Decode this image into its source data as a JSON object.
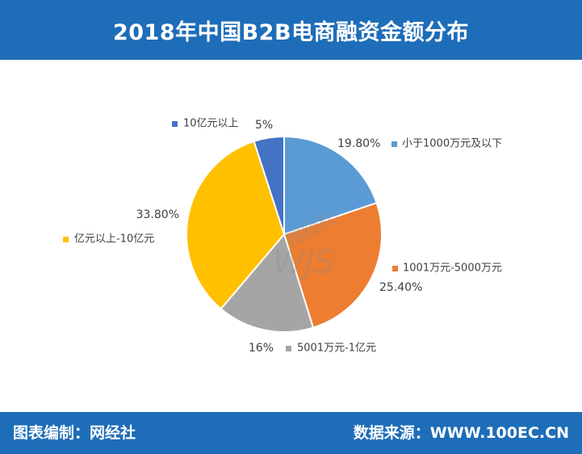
{
  "header": {
    "title": "2018年中国B2B电商融资金额分布"
  },
  "footer": {
    "credit": "图表编制：网经社",
    "source": "数据来源：WWW.100EC.CN"
  },
  "watermark": {
    "brand": "网经社"
  },
  "colors": {
    "header_bg": "#1e6db8",
    "slice_blue": "#5b9bd5",
    "slice_orange": "#ed7d31",
    "slice_gray": "#a5a5a5",
    "slice_yellow": "#ffc000",
    "slice_darkblue": "#4472c4"
  },
  "chart_data": {
    "type": "pie",
    "title": "2018年中国B2B电商融资金额分布",
    "slices": [
      {
        "label": "小于1000万元及以下",
        "value": 19.8,
        "value_label": "19.80%",
        "color": "#5b9bd5"
      },
      {
        "label": "1001万元-5000万元",
        "value": 25.4,
        "value_label": "25.40%",
        "color": "#ed7d31"
      },
      {
        "label": "5001万元-1亿元",
        "value": 16,
        "value_label": "16%",
        "color": "#a5a5a5"
      },
      {
        "label": "亿元以上-10亿元",
        "value": 33.8,
        "value_label": "33.80%",
        "color": "#ffc000"
      },
      {
        "label": "10亿元以上",
        "value": 5,
        "value_label": "5%",
        "color": "#4472c4"
      }
    ]
  }
}
